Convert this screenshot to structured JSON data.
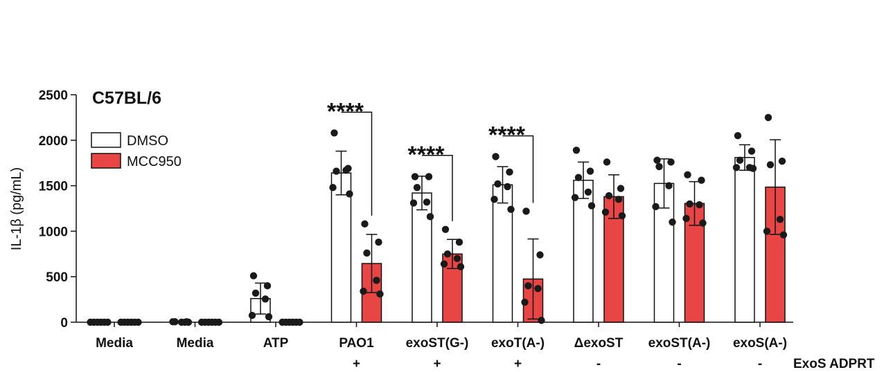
{
  "chart_data": {
    "type": "bar",
    "title": "C57BL/6",
    "ylabel": "IL-1β (pg/mL)",
    "xlabel": "",
    "ylim": [
      0,
      2500
    ],
    "yticks": [
      0,
      500,
      1000,
      1500,
      2000,
      2500
    ],
    "categories": [
      "Media",
      "Media",
      "ATP",
      "PAO1",
      "exoST(G-)",
      "exoT(A-)",
      "ΔexoST",
      "exoST(A-)",
      "exoS(A-)"
    ],
    "row_label": "ExoS ADPRT",
    "row_values": [
      "",
      "",
      "",
      "+",
      "+",
      "+",
      "-",
      "-",
      "-"
    ],
    "colors": {
      "DMSO": "#ffffff",
      "MCC950": "#e84545",
      "edge": "#111111",
      "points": "#1a1a1a"
    },
    "series": [
      {
        "name": "DMSO",
        "values": [
          0,
          0,
          260,
          1640,
          1420,
          1510,
          1560,
          1525,
          1810
        ],
        "errors": [
          0,
          0,
          170,
          240,
          185,
          200,
          200,
          270,
          140
        ],
        "points": [
          [
            0,
            0,
            0,
            0,
            0,
            0
          ],
          [
            5,
            5,
            5,
            0,
            0,
            0
          ],
          [
            510,
            400,
            320,
            255,
            75,
            60
          ],
          [
            2080,
            1690,
            1660,
            1670,
            1480,
            1410
          ],
          [
            1600,
            1600,
            1480,
            1320,
            1310,
            1160
          ],
          [
            1820,
            1650,
            1520,
            1490,
            1350,
            1240
          ],
          [
            1890,
            1660,
            1590,
            1430,
            1370,
            1280
          ],
          [
            1780,
            1760,
            1710,
            1500,
            1270,
            1100
          ],
          [
            2050,
            1880,
            1780,
            1700,
            1700,
            1690
          ]
        ]
      },
      {
        "name": "MCC950",
        "values": [
          0,
          0,
          0,
          645,
          750,
          475,
          1380,
          1305,
          1485
        ],
        "errors": [
          0,
          0,
          0,
          320,
          160,
          440,
          240,
          240,
          520
        ],
        "points": [
          [
            0,
            0,
            0,
            0,
            0,
            0
          ],
          [
            0,
            0,
            0,
            0,
            0,
            0
          ],
          [
            0,
            0,
            0,
            0,
            0,
            0
          ],
          [
            1080,
            880,
            760,
            460,
            340,
            310
          ],
          [
            1020,
            880,
            750,
            700,
            640,
            610
          ],
          [
            1220,
            740,
            400,
            370,
            220,
            20
          ],
          [
            1760,
            1470,
            1390,
            1350,
            1210,
            1170
          ],
          [
            1620,
            1560,
            1300,
            1290,
            1140,
            1090
          ],
          [
            2250,
            1770,
            1730,
            1130,
            1000,
            960
          ]
        ]
      }
    ],
    "significance": [
      {
        "category_index": 3,
        "label": "****"
      },
      {
        "category_index": 4,
        "label": "****"
      },
      {
        "category_index": 5,
        "label": "****"
      }
    ],
    "legend_position": "top-left"
  }
}
